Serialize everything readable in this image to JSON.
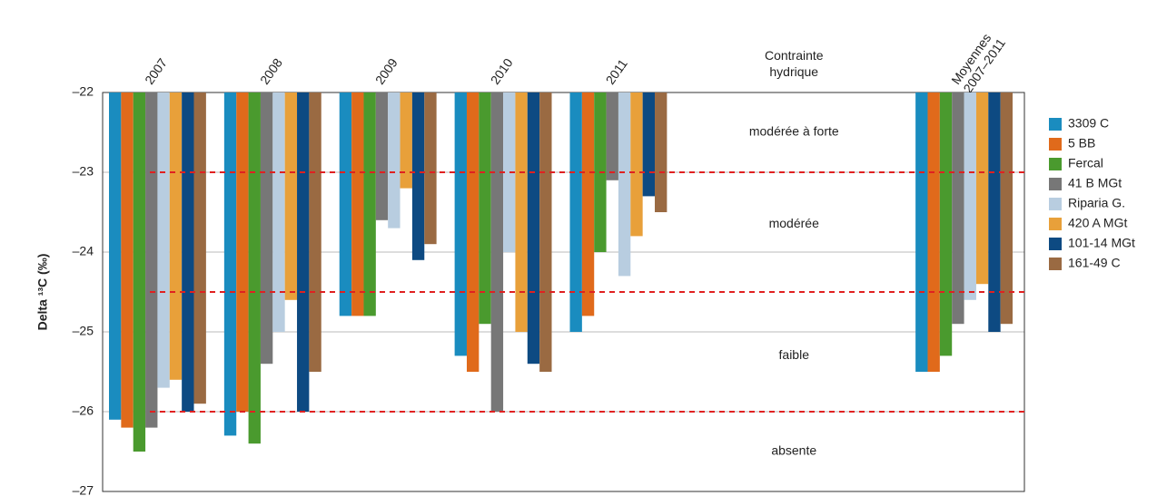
{
  "chart_data": {
    "type": "bar",
    "y_label": "Delta ¹³C (‰)",
    "header": "Contrainte hydrique",
    "categories": [
      "2007",
      "2008",
      "2009",
      "2010",
      "2011",
      null,
      null,
      "Moyennes 2007–2011"
    ],
    "series": [
      {
        "name": "3309 C",
        "color": "#1a8cbf",
        "values": [
          -26.1,
          -26.3,
          -24.8,
          -25.3,
          -25.0,
          null,
          null,
          -25.5
        ]
      },
      {
        "name": "5 BB",
        "color": "#e06a1b",
        "values": [
          -26.2,
          -26.0,
          -24.8,
          -25.5,
          -24.8,
          null,
          null,
          -25.5
        ]
      },
      {
        "name": "Fercal",
        "color": "#4a9a2e",
        "values": [
          -26.5,
          -26.4,
          -24.8,
          -24.9,
          -24.0,
          null,
          null,
          -25.3
        ]
      },
      {
        "name": "41 B MGt",
        "color": "#777777",
        "values": [
          -26.2,
          -25.4,
          -23.6,
          -26.0,
          -23.1,
          null,
          null,
          -24.9
        ]
      },
      {
        "name": "Riparia G.",
        "color": "#b8cde0",
        "values": [
          -25.7,
          -25.0,
          -23.7,
          -24.0,
          -24.3,
          null,
          null,
          -24.6
        ]
      },
      {
        "name": "420 A MGt",
        "color": "#e8a03a",
        "values": [
          -25.6,
          -24.6,
          -23.2,
          -25.0,
          -23.8,
          null,
          null,
          -24.4
        ]
      },
      {
        "name": "101-14 MGt",
        "color": "#0d4a82",
        "values": [
          -26.0,
          -26.0,
          -24.1,
          -25.4,
          -23.3,
          null,
          null,
          -25.0
        ]
      },
      {
        "name": "161-49 C",
        "color": "#9a6a42",
        "values": [
          -25.9,
          -25.5,
          -23.9,
          -25.5,
          -23.5,
          null,
          null,
          -24.9
        ]
      }
    ],
    "ylim": [
      -27,
      -22
    ],
    "yticks": [
      {
        "value": -27,
        "label": "–27"
      },
      {
        "value": -26,
        "label": "–26"
      },
      {
        "value": -25,
        "label": "–25"
      },
      {
        "value": -24,
        "label": "–24"
      },
      {
        "value": -23,
        "label": "–23"
      },
      {
        "value": -22,
        "label": "–22"
      }
    ],
    "grid": true,
    "thresholds": [
      -23,
      -24.5,
      -26
    ],
    "threshold_color": "#e02020",
    "zones": [
      {
        "label": "modérée à forte",
        "y": -22.5
      },
      {
        "label": "modérée",
        "y": -23.65
      },
      {
        "label": "faible",
        "y": -25.3
      },
      {
        "label": "absente",
        "y": -26.5
      }
    ],
    "legend": "right"
  }
}
